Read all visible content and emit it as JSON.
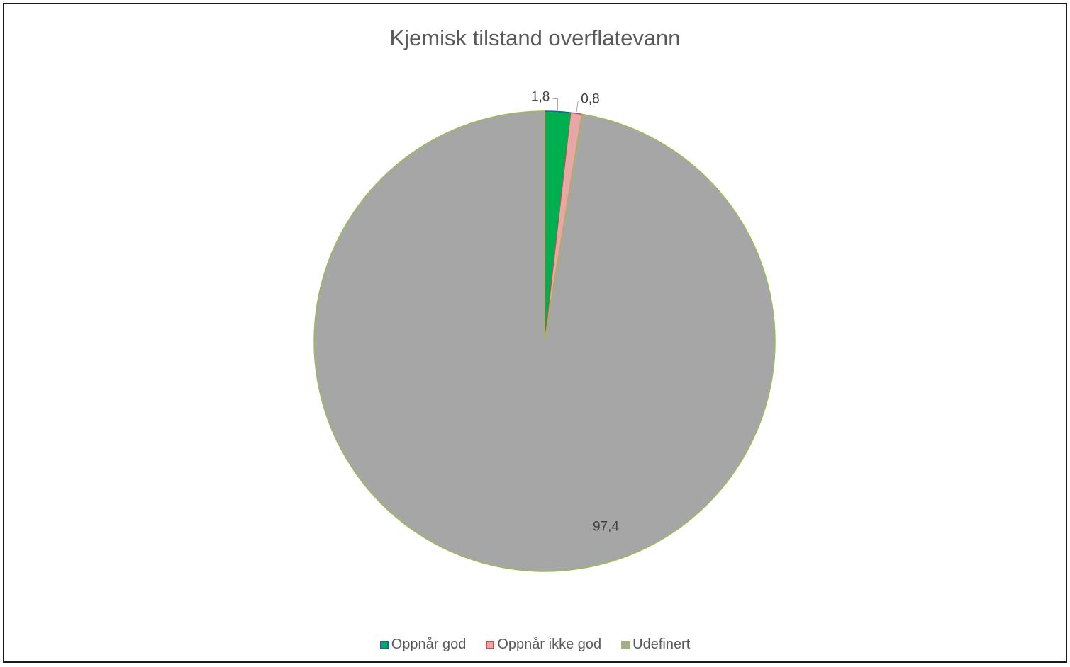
{
  "chart_data": {
    "type": "pie",
    "title": "Kjemisk tilstand overflatevann",
    "categories": [
      "Oppnår god",
      "Oppnår ikke god",
      "Udefinert"
    ],
    "values": [
      1.8,
      0.8,
      97.4
    ],
    "value_labels": [
      "1,8",
      "0,8",
      "97,4"
    ],
    "colors": {
      "fill": [
        "#00b050",
        "#e6a7a7",
        "#a6a6a6"
      ],
      "border": [
        "#1f5fa8",
        "#c0504d",
        "#9bbb59"
      ]
    },
    "legend_position": "bottom"
  }
}
